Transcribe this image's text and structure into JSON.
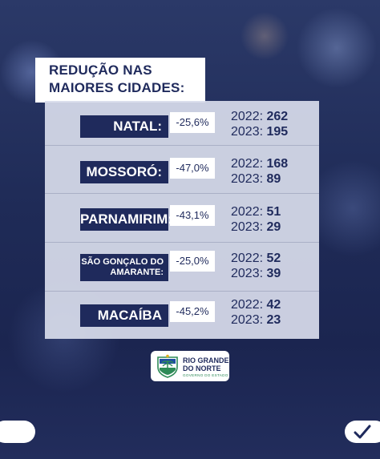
{
  "title": {
    "line1": "REDUÇÃO NAS",
    "line2": "MAIORES CIDADES:"
  },
  "cities": [
    {
      "name": "NATAL:",
      "reduction": "-25,6%",
      "year_a_label": "2022:",
      "year_a_value": "262",
      "year_b_label": "2023:",
      "year_b_value": "195"
    },
    {
      "name": "MOSSORÓ:",
      "reduction": "-47,0%",
      "year_a_label": "2022:",
      "year_a_value": "168",
      "year_b_label": "2023:",
      "year_b_value": "89"
    },
    {
      "name": "PARNAMIRIM:",
      "reduction": "-43,1%",
      "year_a_label": "2022:",
      "year_a_value": "51",
      "year_b_label": "2023:",
      "year_b_value": "29"
    },
    {
      "name": "SÃO GONÇALO DO AMARANTE:",
      "reduction": "-25,0%",
      "year_a_label": "2022:",
      "year_a_value": "52",
      "year_b_label": "2023:",
      "year_b_value": "39"
    },
    {
      "name": "MACAÍBA",
      "reduction": "-45,2%",
      "year_a_label": "2022:",
      "year_a_value": "42",
      "year_b_label": "2023:",
      "year_b_value": "23"
    }
  ],
  "logo": {
    "line1": "RIO GRANDE",
    "line2": "DO NORTE",
    "line3": "GOVERNO DO ESTADO",
    "icon": "state-emblem-icon"
  },
  "ui": {
    "check_icon": "check-icon"
  },
  "colors": {
    "navy": "#1f2a5c",
    "panel": "#d7dceb",
    "accent_green": "#2e8b57"
  }
}
